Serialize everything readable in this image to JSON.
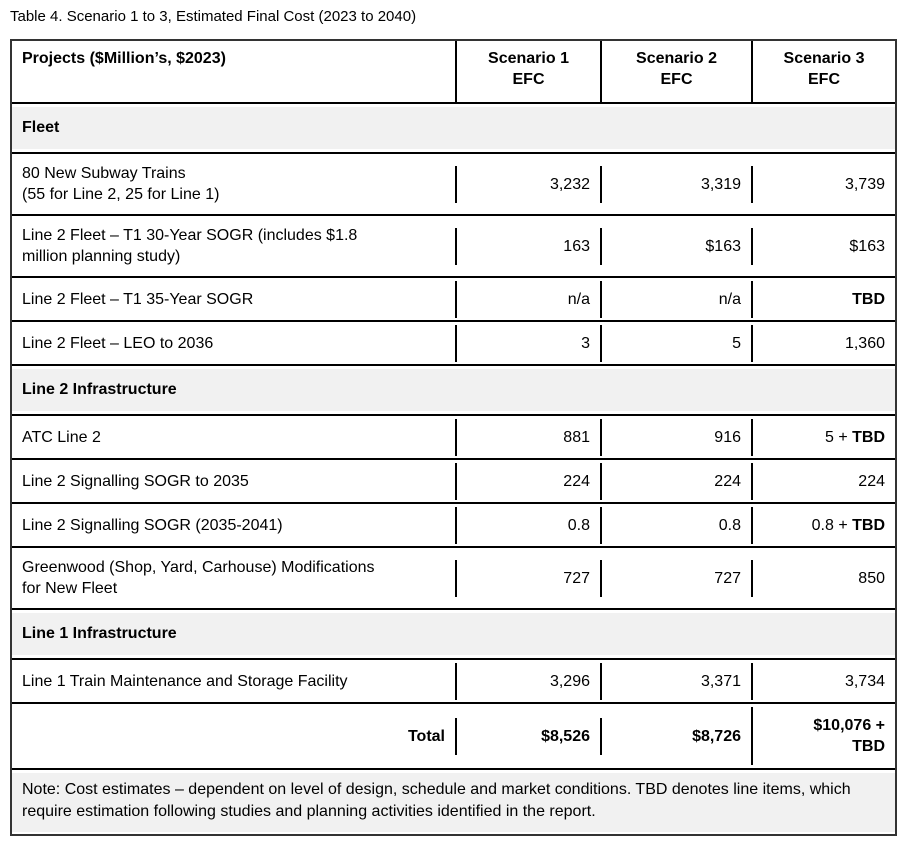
{
  "title": "Table 4. Scenario 1 to 3, Estimated Final Cost (2023 to 2040)",
  "table": {
    "columns": [
      "Projects ($Million’s, $2023)",
      "Scenario 1\nEFC",
      "Scenario 2\nEFC",
      "Scenario 3\nEFC"
    ],
    "rows": [
      {
        "type": "section",
        "label": "Fleet"
      },
      {
        "type": "data",
        "tall": true,
        "project": "80 New Subway Trains\n(55 for Line 2, 25 for Line 1)",
        "values": [
          {
            "text": "3,232"
          },
          {
            "text": "3,319"
          },
          {
            "text": "3,739"
          }
        ]
      },
      {
        "type": "data",
        "tall": true,
        "project": "Line 2 Fleet – T1 30-Year SOGR (includes $1.8\nmillion planning study)",
        "values": [
          {
            "text": "163"
          },
          {
            "text": "$163"
          },
          {
            "text": "$163"
          }
        ]
      },
      {
        "type": "data",
        "project": "Line 2 Fleet – T1 35-Year SOGR",
        "values": [
          {
            "text": "n/a"
          },
          {
            "text": "n/a"
          },
          {
            "text": "TBD",
            "bold": true
          }
        ]
      },
      {
        "type": "data",
        "project": "Line 2 Fleet – LEO to 2036",
        "values": [
          {
            "text": "3"
          },
          {
            "text": "5"
          },
          {
            "text": "1,360"
          }
        ]
      },
      {
        "type": "section",
        "label": "Line 2 Infrastructure"
      },
      {
        "type": "data",
        "project": "ATC Line 2",
        "values": [
          {
            "text": "881"
          },
          {
            "text": "916"
          },
          {
            "prefix": "5 + ",
            "text": "TBD",
            "bold": true
          }
        ]
      },
      {
        "type": "data",
        "project": "Line 2 Signalling SOGR to 2035",
        "values": [
          {
            "text": "224"
          },
          {
            "text": "224"
          },
          {
            "text": "224"
          }
        ]
      },
      {
        "type": "data",
        "project": "Line 2 Signalling SOGR (2035-2041)",
        "values": [
          {
            "text": "0.8"
          },
          {
            "text": "0.8"
          },
          {
            "prefix": "0.8 + ",
            "text": "TBD",
            "bold": true
          }
        ]
      },
      {
        "type": "data",
        "tall": true,
        "project": "Greenwood (Shop, Yard, Carhouse) Modifications\nfor New Fleet",
        "values": [
          {
            "text": "727"
          },
          {
            "text": "727"
          },
          {
            "text": "850"
          }
        ]
      },
      {
        "type": "section",
        "label": "Line 1 Infrastructure"
      },
      {
        "type": "data",
        "project": "Line 1 Train Maintenance and Storage Facility",
        "values": [
          {
            "text": "3,296"
          },
          {
            "text": "3,371"
          },
          {
            "text": "3,734"
          }
        ]
      },
      {
        "type": "total",
        "label": "Total",
        "values": [
          {
            "text": "$8,526",
            "bold": true
          },
          {
            "text": "$8,726",
            "bold": true
          },
          {
            "text": "$10,076 +\nTBD",
            "bold": true
          }
        ]
      },
      {
        "type": "note",
        "text": "Note: Cost estimates – dependent on level of design, schedule and market conditions. TBD denotes line items, which require estimation following studies and planning activities identified in the report."
      }
    ]
  },
  "colors": {
    "section_background": "#f1f1f1",
    "inner_border": "#000000",
    "outer_border": "#333333",
    "text": "#000000"
  }
}
